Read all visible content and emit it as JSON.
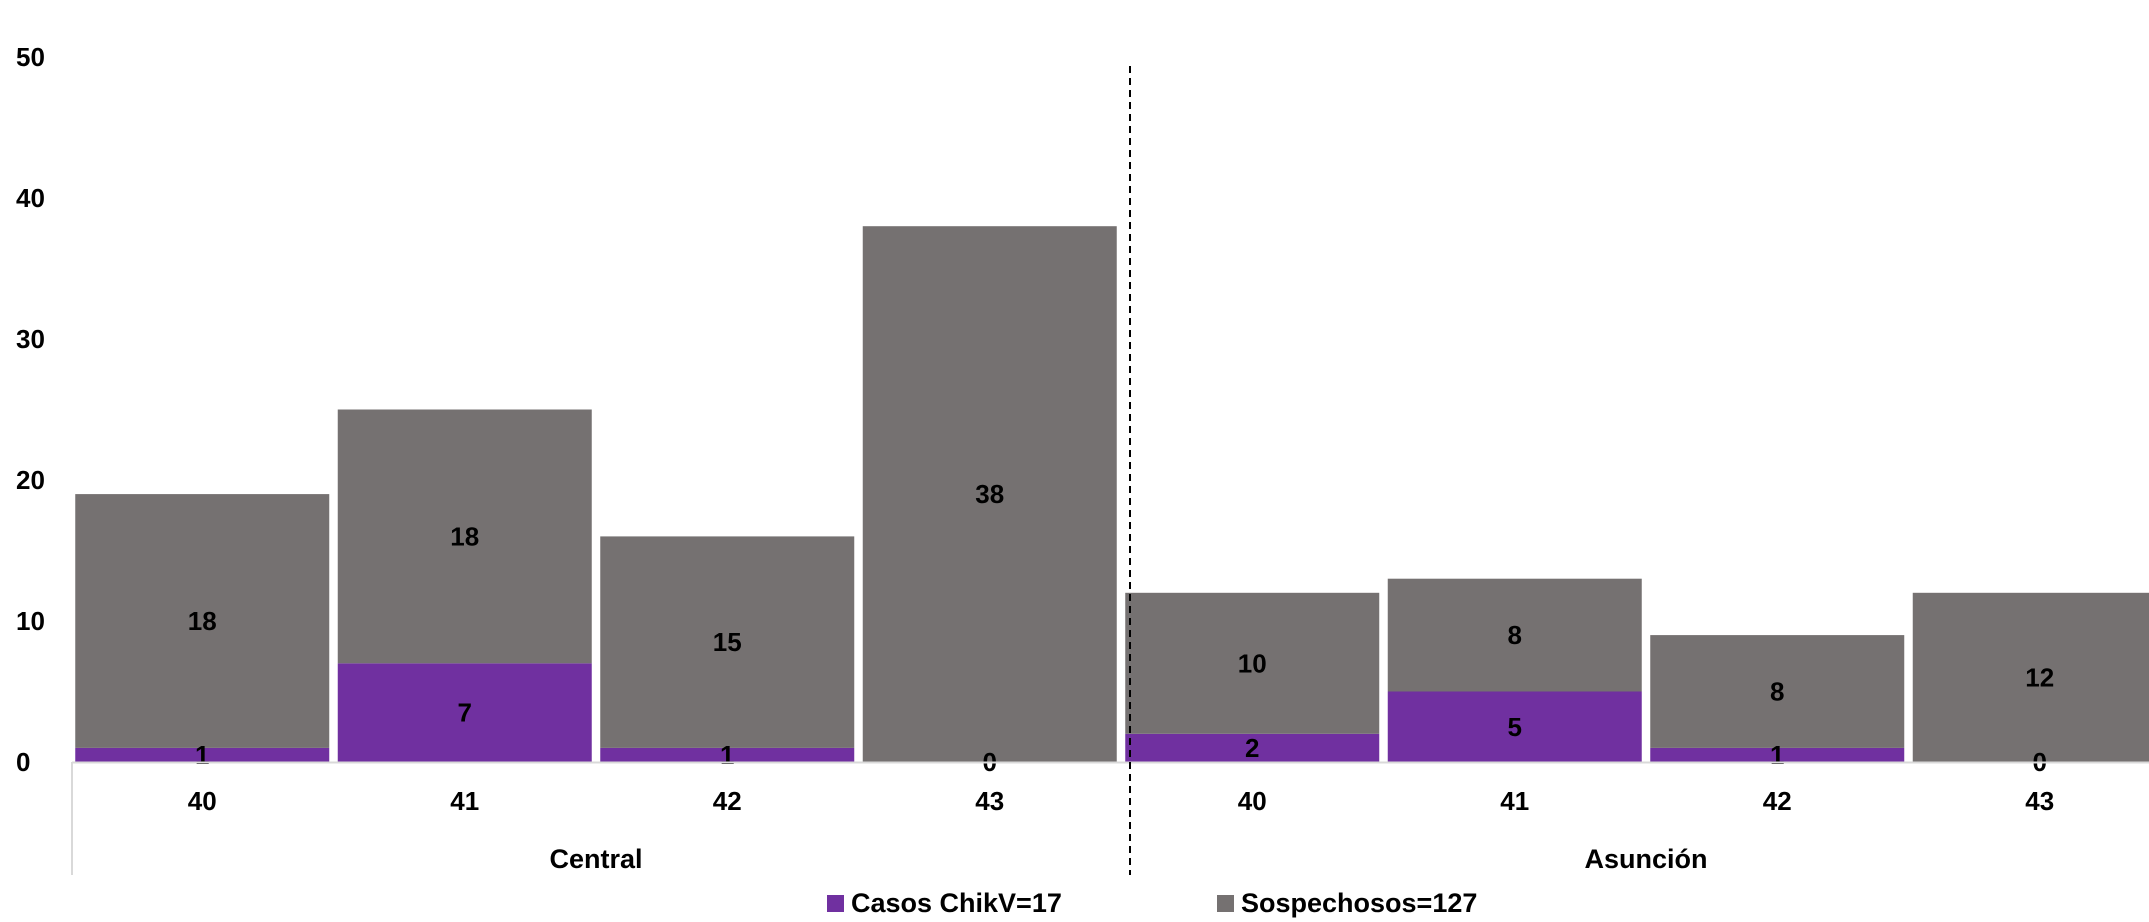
{
  "chart_data": {
    "type": "bar",
    "stacked": true,
    "groups": [
      {
        "label": "Central",
        "categories": [
          "40",
          "41",
          "42",
          "43"
        ]
      },
      {
        "label": "Asunción",
        "categories": [
          "40",
          "41",
          "42",
          "43"
        ]
      }
    ],
    "categories": [
      "40",
      "41",
      "42",
      "43",
      "40",
      "41",
      "42",
      "43"
    ],
    "series": [
      {
        "name": "Casos ChikV=17",
        "color": "#7030a0",
        "values": [
          1,
          7,
          1,
          0,
          2,
          5,
          1,
          0
        ]
      },
      {
        "name": "Sospechosos=127",
        "color": "#757171",
        "values": [
          18,
          18,
          15,
          38,
          10,
          8,
          8,
          12
        ]
      }
    ],
    "y_ticks": [
      "0",
      "10",
      "20",
      "30",
      "40",
      "50"
    ],
    "ylim": [
      0,
      50
    ],
    "grid": false,
    "legend_position": "bottom"
  }
}
